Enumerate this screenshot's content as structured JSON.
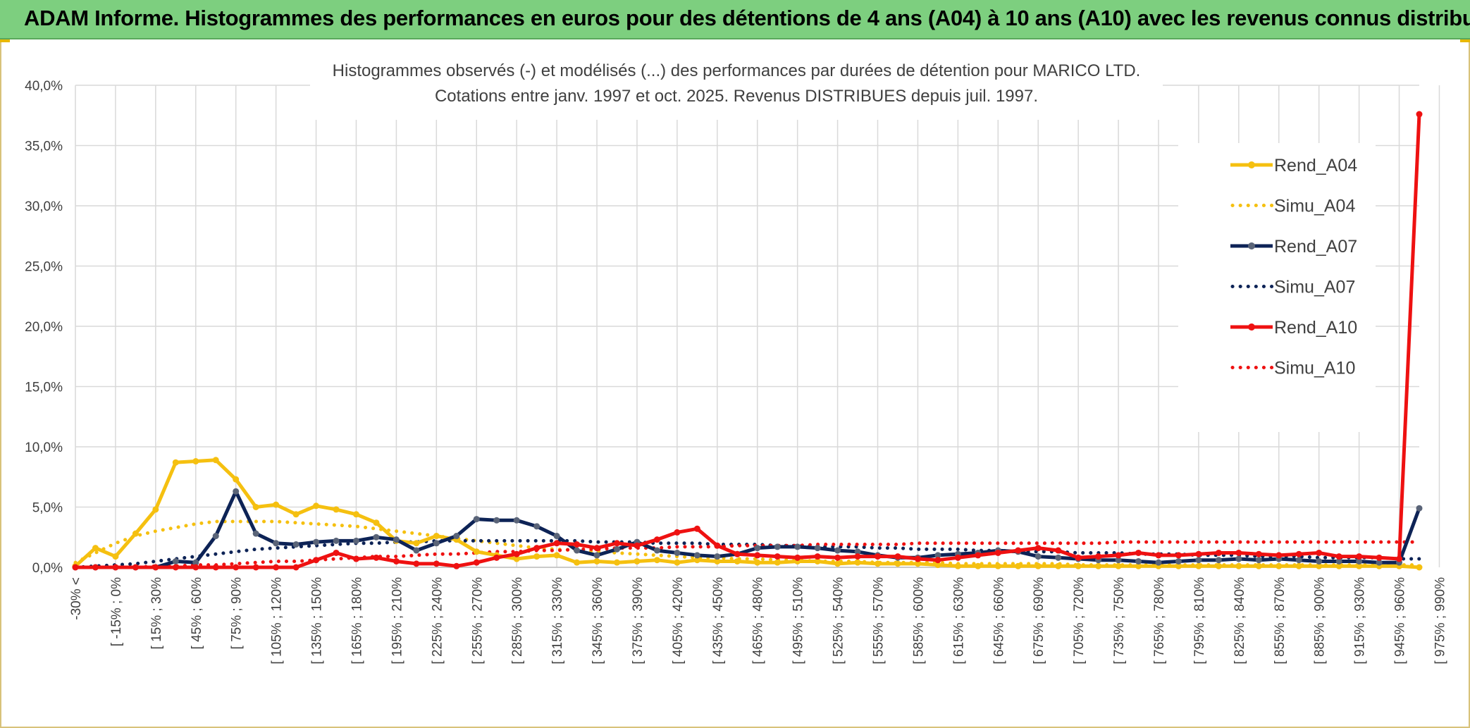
{
  "header": {
    "title": "ADAM Informe. Histogrammes des performances en euros pour des détentions de 4 ans (A04) à 10 ans (A10) avec les revenus connus distribués"
  },
  "chart_data": {
    "type": "line",
    "title": "Histogrammes observés (-) et modélisés (...) des performances par durées de détention pour MARICO LTD.",
    "subtitle": "Cotations entre janv. 1997 et oct. 2025. Revenus DISTRIBUES depuis juil. 1997.",
    "xlabel": "",
    "ylabel": "",
    "ylim": [
      0,
      40
    ],
    "yticks": [
      "0,0%",
      "5,0%",
      "10,0%",
      "15,0%",
      "20,0%",
      "25,0%",
      "30,0%",
      "35,0%",
      "40,0%"
    ],
    "grid": true,
    "legend_position": "right",
    "x_labels_shown": [
      "-30% <",
      "[ -15% ; 0%",
      "[ 15% ; 30%",
      "[ 45% ; 60%",
      "[ 75% ; 90%",
      "[ 105% ; 120%",
      "[ 135% ; 150%",
      "[ 165% ; 180%",
      "[ 195% ; 210%",
      "[ 225% ; 240%",
      "[ 255% ; 270%",
      "[ 285% ; 300%",
      "[ 315% ; 330%",
      "[ 345% ; 360%",
      "[ 375% ; 390%",
      "[ 405% ; 420%",
      "[ 435% ; 450%",
      "[ 465% ; 480%",
      "[ 495% ; 510%",
      "[ 525% ; 540%",
      "[ 555% ; 570%",
      "[ 585% ; 600%",
      "[ 615% ; 630%",
      "[ 645% ; 660%",
      "[ 675% ; 690%",
      "[ 705% ; 720%",
      "[ 735% ; 750%",
      "[ 765% ; 780%",
      "[ 795% ; 810%",
      "[ 825% ; 840%",
      "[ 855% ; 870%",
      "[ 885% ; 900%",
      "[ 915% ; 930%",
      "[ 945% ; 960%",
      "[ 975% ; 990%"
    ],
    "series": [
      {
        "name": "Rend_A04",
        "style": "solid",
        "color": "#f5c010",
        "markers": true,
        "values": [
          0.1,
          1.6,
          0.9,
          2.8,
          4.8,
          8.7,
          8.8,
          8.9,
          7.3,
          5.0,
          5.2,
          4.4,
          5.1,
          4.8,
          4.4,
          3.7,
          2.2,
          2.0,
          2.6,
          2.3,
          1.3,
          1.0,
          0.7,
          0.9,
          1.0,
          0.4,
          0.5,
          0.4,
          0.5,
          0.6,
          0.4,
          0.6,
          0.5,
          0.5,
          0.4,
          0.4,
          0.5,
          0.5,
          0.3,
          0.4,
          0.3,
          0.3,
          0.3,
          0.2,
          0.1,
          0.1,
          0.1,
          0.1,
          0.1,
          0.1,
          0.1,
          0.1,
          0.1,
          0.1,
          0.1,
          0.1,
          0.1,
          0.1,
          0.1,
          0.1,
          0.1,
          0.1,
          0.1,
          0.1,
          0.1,
          0.1,
          0.1,
          0.0
        ]
      },
      {
        "name": "Simu_A04",
        "style": "dotted",
        "color": "#f5c010",
        "markers": false,
        "values": [
          0.4,
          1.2,
          2.0,
          2.6,
          3.0,
          3.3,
          3.6,
          3.8,
          3.8,
          3.8,
          3.8,
          3.7,
          3.6,
          3.5,
          3.4,
          3.2,
          3.0,
          2.8,
          2.6,
          2.4,
          2.2,
          2.0,
          1.8,
          1.6,
          1.5,
          1.4,
          1.3,
          1.2,
          1.1,
          1.0,
          0.9,
          0.8,
          0.8,
          0.7,
          0.7,
          0.6,
          0.6,
          0.5,
          0.5,
          0.5,
          0.4,
          0.4,
          0.4,
          0.4,
          0.3,
          0.3,
          0.3,
          0.3,
          0.3,
          0.3,
          0.2,
          0.2,
          0.2,
          0.2,
          0.2,
          0.2,
          0.2,
          0.2,
          0.2,
          0.2,
          0.2,
          0.2,
          0.2,
          0.2,
          0.2,
          0.2,
          0.2,
          0.2
        ]
      },
      {
        "name": "Rend_A07",
        "style": "solid",
        "color": "#0d2356",
        "markers": true,
        "values": [
          0.0,
          0.0,
          0.0,
          0.0,
          0.0,
          0.5,
          0.4,
          2.6,
          6.3,
          2.8,
          2.0,
          1.9,
          2.1,
          2.2,
          2.2,
          2.5,
          2.3,
          1.4,
          2.0,
          2.6,
          4.0,
          3.9,
          3.9,
          3.4,
          2.6,
          1.4,
          1.0,
          1.5,
          2.1,
          1.4,
          1.2,
          1.0,
          0.9,
          1.1,
          1.6,
          1.7,
          1.7,
          1.6,
          1.4,
          1.3,
          1.0,
          0.8,
          0.8,
          1.0,
          1.1,
          1.2,
          1.4,
          1.3,
          0.9,
          0.8,
          0.7,
          0.6,
          0.6,
          0.5,
          0.4,
          0.5,
          0.6,
          0.6,
          0.7,
          0.6,
          0.7,
          0.6,
          0.5,
          0.5,
          0.5,
          0.4,
          0.4,
          4.9
        ]
      },
      {
        "name": "Simu_A07",
        "style": "dotted",
        "color": "#0d2356",
        "markers": false,
        "values": [
          0.0,
          0.1,
          0.2,
          0.3,
          0.5,
          0.7,
          0.9,
          1.1,
          1.3,
          1.5,
          1.6,
          1.7,
          1.8,
          1.9,
          2.0,
          2.0,
          2.1,
          2.1,
          2.2,
          2.2,
          2.2,
          2.2,
          2.2,
          2.2,
          2.2,
          2.2,
          2.1,
          2.1,
          2.1,
          2.0,
          2.0,
          2.0,
          1.9,
          1.9,
          1.9,
          1.8,
          1.8,
          1.7,
          1.7,
          1.7,
          1.6,
          1.6,
          1.5,
          1.5,
          1.5,
          1.4,
          1.4,
          1.3,
          1.3,
          1.3,
          1.2,
          1.2,
          1.2,
          1.1,
          1.1,
          1.1,
          1.0,
          1.0,
          1.0,
          0.9,
          0.9,
          0.9,
          0.8,
          0.8,
          0.8,
          0.8,
          0.7,
          0.7
        ]
      },
      {
        "name": "Rend_A10",
        "style": "solid",
        "color": "#ee1111",
        "markers": true,
        "values": [
          0.0,
          0.0,
          0.0,
          0.0,
          0.0,
          0.0,
          0.0,
          0.0,
          0.0,
          0.0,
          0.0,
          0.0,
          0.6,
          1.2,
          0.7,
          0.8,
          0.5,
          0.3,
          0.3,
          0.1,
          0.4,
          0.8,
          1.1,
          1.6,
          2.0,
          1.9,
          1.6,
          2.0,
          1.8,
          2.3,
          2.9,
          3.2,
          1.8,
          1.1,
          1.0,
          0.9,
          0.8,
          0.9,
          0.8,
          0.9,
          0.9,
          0.9,
          0.7,
          0.6,
          0.8,
          1.0,
          1.2,
          1.4,
          1.6,
          1.4,
          0.8,
          0.9,
          1.0,
          1.2,
          1.0,
          1.0,
          1.1,
          1.2,
          1.2,
          1.1,
          1.0,
          1.1,
          1.2,
          0.9,
          0.9,
          0.8,
          0.7,
          37.6
        ]
      },
      {
        "name": "Simu_A10",
        "style": "dotted",
        "color": "#ee1111",
        "markers": false,
        "values": [
          0.0,
          0.0,
          0.0,
          0.0,
          0.1,
          0.1,
          0.2,
          0.2,
          0.3,
          0.4,
          0.5,
          0.5,
          0.6,
          0.7,
          0.8,
          0.9,
          0.9,
          1.0,
          1.1,
          1.1,
          1.2,
          1.3,
          1.3,
          1.4,
          1.4,
          1.5,
          1.5,
          1.6,
          1.6,
          1.6,
          1.7,
          1.7,
          1.7,
          1.8,
          1.8,
          1.8,
          1.8,
          1.9,
          1.9,
          1.9,
          1.9,
          1.9,
          2.0,
          2.0,
          2.0,
          2.0,
          2.0,
          2.0,
          2.0,
          2.0,
          2.0,
          2.0,
          2.1,
          2.1,
          2.1,
          2.1,
          2.1,
          2.1,
          2.1,
          2.1,
          2.1,
          2.1,
          2.1,
          2.1,
          2.1,
          2.1,
          2.1,
          2.1
        ]
      }
    ]
  }
}
